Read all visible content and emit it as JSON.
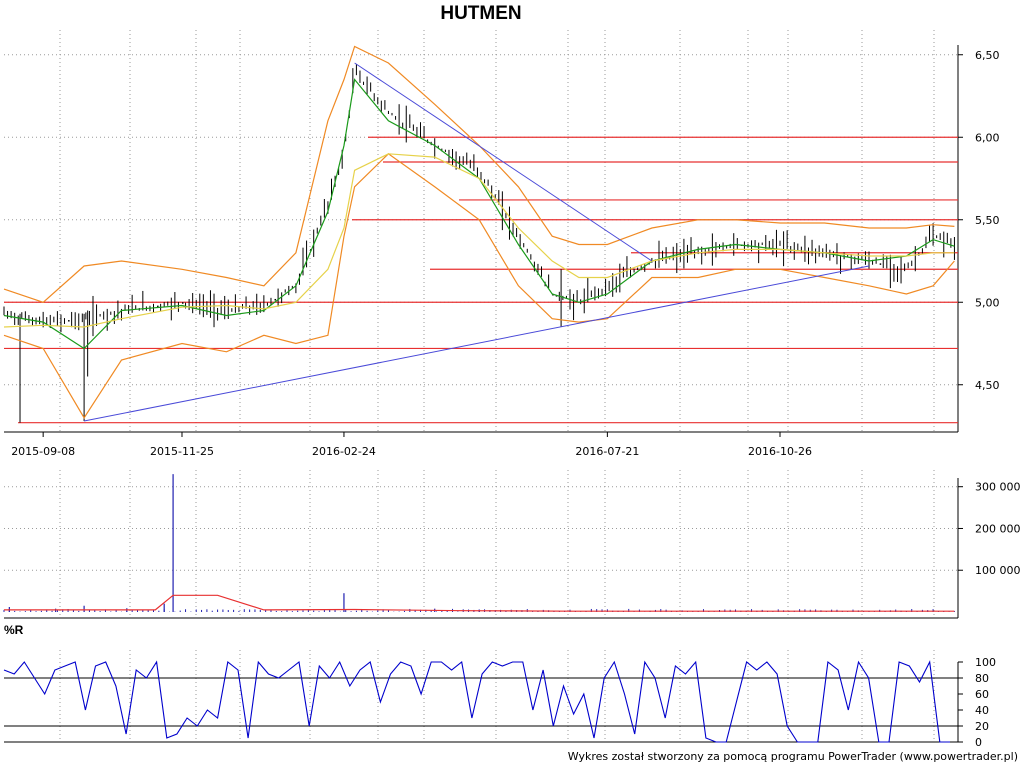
{
  "title": "HUTMEN",
  "footer": "Wykres został stworzony za pomocą programu PowerTrader (www.powertrader.pl)",
  "colors": {
    "price": "#000000",
    "bollinger": "#f08a24",
    "ma_fast": "#1a9a1a",
    "ma_slow": "#e6d24a",
    "support": "#e83030",
    "trendline": "#4a4ad8",
    "volume": "#2020b0",
    "volume_ma": "#e83030",
    "williams": "#0000cc",
    "grid": "#9a9a9a"
  },
  "chart_data": [
    {
      "type": "line",
      "panel": "price",
      "title": "HUTMEN",
      "date_ticks": [
        "2015-09-08",
        "2015-11-25",
        "2016-02-24",
        "2016-07-21",
        "2016-10-26"
      ],
      "y_ticks": [
        "4,50",
        "5,00",
        "5,50",
        "6,00",
        "6,50"
      ],
      "ylim": [
        4.25,
        6.65
      ],
      "grid": true,
      "series": [
        {
          "name": "close",
          "x": [
            "2015-08-17",
            "2015-09-08",
            "2015-10-01",
            "2015-10-22",
            "2015-11-25",
            "2015-12-20",
            "2016-01-10",
            "2016-01-28",
            "2016-02-15",
            "2016-02-24",
            "2016-03-01",
            "2016-03-20",
            "2016-04-15",
            "2016-05-10",
            "2016-06-01",
            "2016-06-20",
            "2016-07-05",
            "2016-07-21",
            "2016-08-15",
            "2016-09-10",
            "2016-10-01",
            "2016-10-26",
            "2016-11-20",
            "2016-12-15",
            "2017-01-05",
            "2017-01-20",
            "2017-02-01"
          ],
          "values": [
            4.93,
            4.88,
            4.9,
            4.95,
            5.0,
            4.95,
            4.98,
            5.1,
            5.6,
            5.9,
            6.4,
            6.15,
            5.95,
            5.8,
            5.4,
            5.05,
            5.0,
            5.1,
            5.25,
            5.3,
            5.35,
            5.35,
            5.3,
            5.25,
            5.2,
            5.4,
            5.35
          ]
        },
        {
          "name": "bollinger_upper",
          "x": [
            "2015-08-17",
            "2015-09-08",
            "2015-10-01",
            "2015-10-22",
            "2015-11-25",
            "2015-12-20",
            "2016-01-10",
            "2016-01-28",
            "2016-02-15",
            "2016-02-24",
            "2016-03-01",
            "2016-03-20",
            "2016-04-15",
            "2016-05-10",
            "2016-06-01",
            "2016-06-20",
            "2016-07-05",
            "2016-07-21",
            "2016-08-15",
            "2016-09-10",
            "2016-10-01",
            "2016-10-26",
            "2016-11-20",
            "2016-12-15",
            "2017-01-05",
            "2017-01-20",
            "2017-02-01"
          ],
          "values": [
            5.08,
            5.0,
            5.22,
            5.25,
            5.2,
            5.15,
            5.1,
            5.3,
            6.1,
            6.35,
            6.55,
            6.45,
            6.2,
            5.95,
            5.7,
            5.4,
            5.35,
            5.35,
            5.45,
            5.5,
            5.5,
            5.48,
            5.48,
            5.45,
            5.45,
            5.47,
            5.46
          ]
        },
        {
          "name": "bollinger_lower",
          "x": [
            "2015-08-17",
            "2015-09-08",
            "2015-10-01",
            "2015-10-22",
            "2015-11-25",
            "2015-12-20",
            "2016-01-10",
            "2016-01-28",
            "2016-02-15",
            "2016-02-24",
            "2016-03-01",
            "2016-03-20",
            "2016-04-15",
            "2016-05-10",
            "2016-06-01",
            "2016-06-20",
            "2016-07-05",
            "2016-07-21",
            "2016-08-15",
            "2016-09-10",
            "2016-10-01",
            "2016-10-26",
            "2016-11-20",
            "2016-12-15",
            "2017-01-05",
            "2017-01-20",
            "2017-02-01"
          ],
          "values": [
            4.8,
            4.72,
            4.3,
            4.65,
            4.75,
            4.7,
            4.8,
            4.75,
            4.8,
            5.4,
            5.7,
            5.9,
            5.7,
            5.5,
            5.1,
            4.9,
            4.88,
            4.9,
            5.15,
            5.15,
            5.2,
            5.2,
            5.15,
            5.1,
            5.05,
            5.1,
            5.25
          ]
        },
        {
          "name": "ma_fast",
          "x": [
            "2015-08-17",
            "2015-09-08",
            "2015-10-01",
            "2015-10-22",
            "2015-11-25",
            "2015-12-20",
            "2016-01-10",
            "2016-01-28",
            "2016-02-15",
            "2016-02-24",
            "2016-03-01",
            "2016-03-20",
            "2016-04-15",
            "2016-05-10",
            "2016-06-01",
            "2016-06-20",
            "2016-07-05",
            "2016-07-21",
            "2016-08-15",
            "2016-09-10",
            "2016-10-01",
            "2016-10-26",
            "2016-11-20",
            "2016-12-15",
            "2017-01-05",
            "2017-01-20",
            "2017-02-01"
          ],
          "values": [
            4.92,
            4.88,
            4.72,
            4.95,
            4.98,
            4.92,
            4.95,
            5.1,
            5.55,
            5.95,
            6.35,
            6.1,
            5.95,
            5.75,
            5.35,
            5.05,
            5.0,
            5.05,
            5.25,
            5.32,
            5.35,
            5.32,
            5.3,
            5.25,
            5.28,
            5.38,
            5.34
          ]
        },
        {
          "name": "ma_slow",
          "x": [
            "2015-08-17",
            "2015-09-08",
            "2015-10-01",
            "2015-10-22",
            "2015-11-25",
            "2015-12-20",
            "2016-01-10",
            "2016-01-28",
            "2016-02-15",
            "2016-02-24",
            "2016-03-01",
            "2016-03-20",
            "2016-04-15",
            "2016-05-10",
            "2016-06-01",
            "2016-06-20",
            "2016-07-05",
            "2016-07-21",
            "2016-08-15",
            "2016-09-10",
            "2016-10-01",
            "2016-10-26",
            "2016-11-20",
            "2016-12-15",
            "2017-01-05",
            "2017-01-20",
            "2017-02-01"
          ],
          "values": [
            4.85,
            4.86,
            4.85,
            4.9,
            4.97,
            4.98,
            4.96,
            5.0,
            5.2,
            5.45,
            5.8,
            5.9,
            5.88,
            5.75,
            5.45,
            5.25,
            5.15,
            5.15,
            5.25,
            5.3,
            5.32,
            5.32,
            5.3,
            5.28,
            5.28,
            5.3,
            5.3
          ]
        }
      ],
      "horizontal_levels": [
        6.0,
        5.85,
        5.62,
        5.5,
        5.3,
        5.2,
        5.0,
        4.72,
        4.27
      ],
      "trendlines": [
        {
          "from": [
            "2015-10-01",
            4.28
          ],
          "to": [
            "2016-12-15",
            5.22
          ]
        },
        {
          "from": [
            "2016-03-01",
            6.45
          ],
          "to": [
            "2016-08-15",
            5.25
          ]
        }
      ]
    },
    {
      "type": "bar",
      "panel": "volume",
      "y_ticks": [
        "100 000",
        "200 000",
        "300 000"
      ],
      "ylim": [
        0,
        340000
      ],
      "grid": true,
      "spikes": [
        {
          "x": "2015-08-20",
          "value": 12000
        },
        {
          "x": "2015-09-15",
          "value": 8000
        },
        {
          "x": "2015-10-01",
          "value": 15000
        },
        {
          "x": "2015-10-25",
          "value": 9000
        },
        {
          "x": "2015-11-20",
          "value": 330000
        },
        {
          "x": "2015-11-15",
          "value": 20000
        },
        {
          "x": "2016-02-24",
          "value": 45000
        },
        {
          "x": "2016-04-15",
          "value": 8000
        },
        {
          "x": "2016-05-10",
          "value": 6000
        }
      ],
      "series": [
        {
          "name": "volume_ma",
          "x": [
            "2015-08-17",
            "2015-11-10",
            "2015-11-20",
            "2015-12-15",
            "2016-01-10",
            "2016-03-01",
            "2016-05-01",
            "2016-07-01",
            "2016-10-01",
            "2017-02-01"
          ],
          "values": [
            5000,
            5000,
            40000,
            40000,
            5000,
            6000,
            3000,
            2000,
            2000,
            2000
          ]
        }
      ]
    },
    {
      "type": "line",
      "panel": "williams",
      "title": "%R",
      "y_ticks": [
        "0",
        "20",
        "40",
        "60",
        "80",
        "100"
      ],
      "ylim": [
        0,
        100
      ],
      "levels": [
        20,
        80
      ],
      "grid": true,
      "series": [
        {
          "name": "%R",
          "values": [
            90,
            85,
            100,
            80,
            60,
            90,
            95,
            100,
            40,
            95,
            100,
            70,
            10,
            90,
            80,
            100,
            5,
            10,
            30,
            20,
            40,
            30,
            100,
            90,
            5,
            100,
            85,
            80,
            90,
            100,
            20,
            95,
            80,
            100,
            70,
            90,
            100,
            50,
            85,
            100,
            95,
            60,
            100,
            100,
            90,
            100,
            30,
            85,
            100,
            95,
            100,
            100,
            40,
            90,
            20,
            70,
            35,
            60,
            5,
            80,
            100,
            60,
            10,
            100,
            80,
            30,
            95,
            85,
            100,
            5,
            0,
            0,
            50,
            100,
            90,
            100,
            85,
            20,
            0,
            0,
            0,
            100,
            90,
            40,
            100,
            80,
            0,
            0,
            100,
            95,
            75,
            100,
            0,
            0
          ]
        }
      ]
    }
  ]
}
